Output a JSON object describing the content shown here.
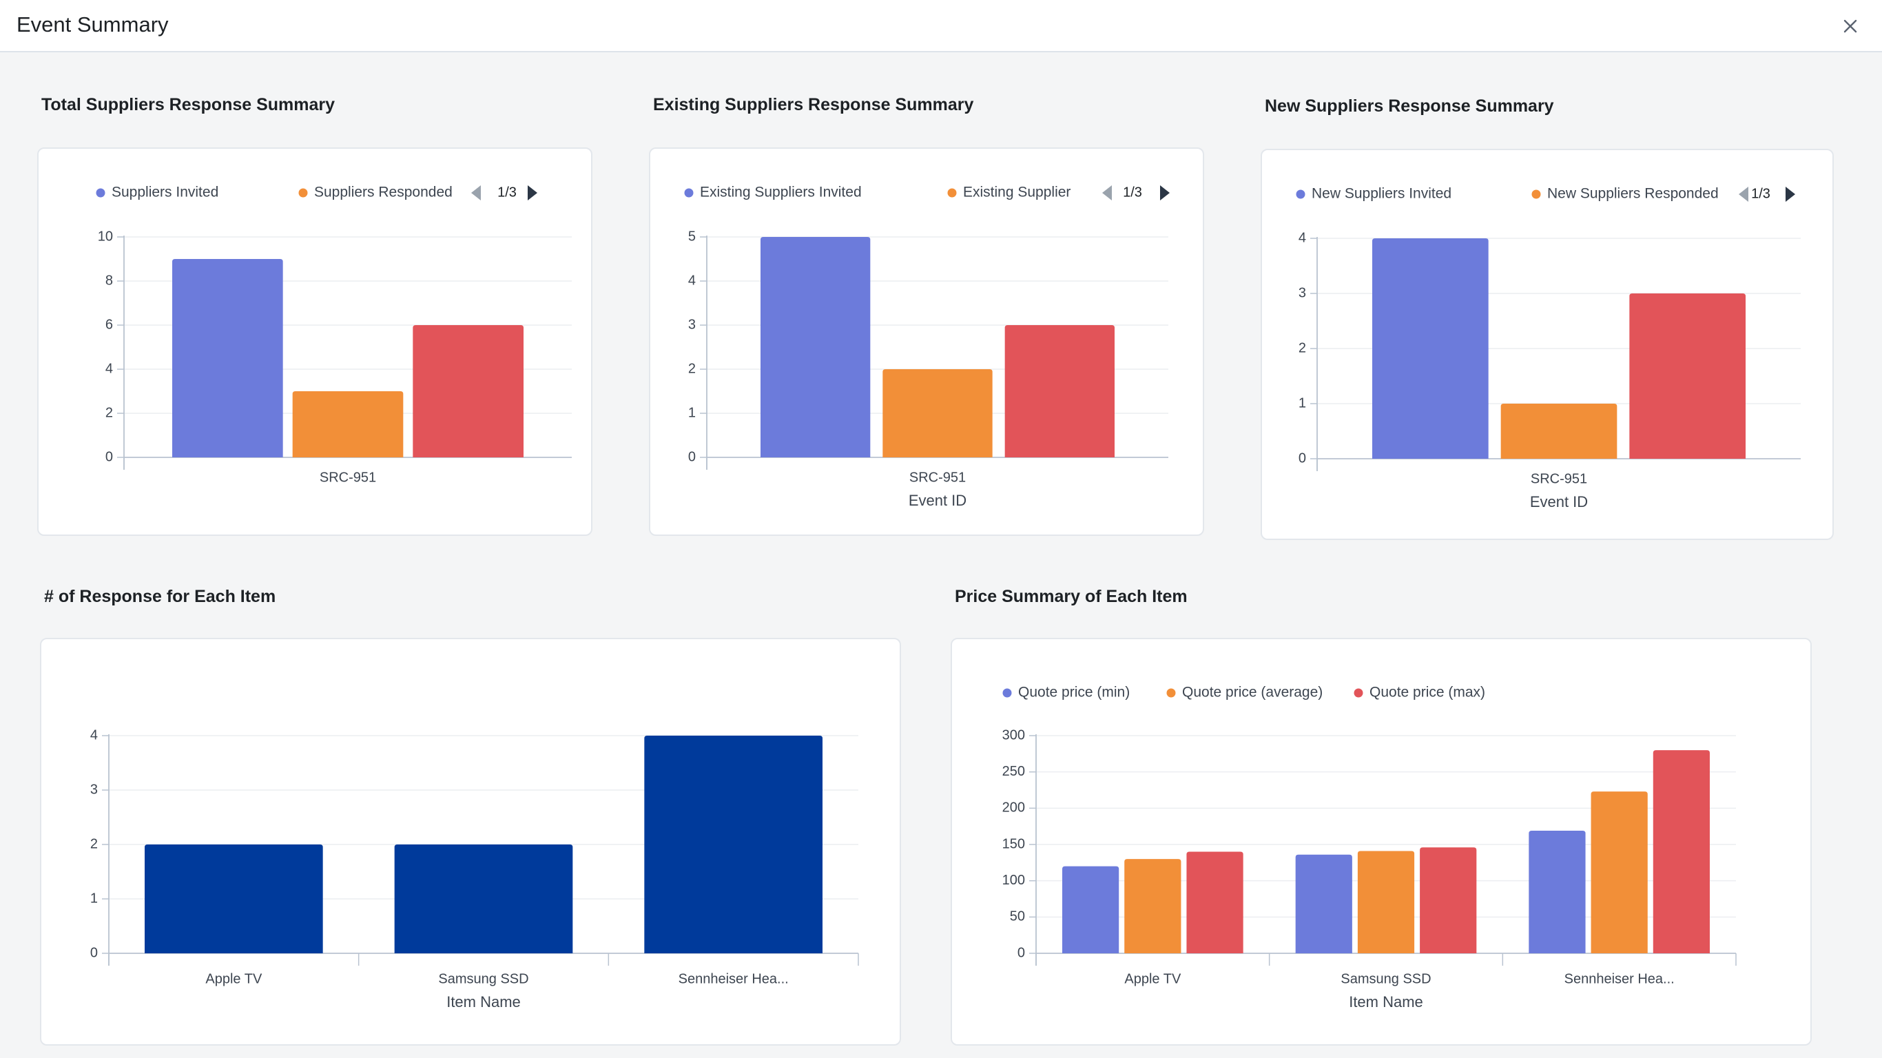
{
  "header": {
    "title": "Event Summary",
    "close_icon": "close-icon"
  },
  "colors": {
    "blue": "#6c7bdb",
    "orange": "#f28f38",
    "red": "#e25459",
    "navy": "#003a9b",
    "grid": "#eceef1",
    "axis": "#b9c3d0",
    "text": "#3d4550"
  },
  "sections": {
    "total_title": "Total Suppliers Response Summary",
    "existing_title": "Existing Suppliers Response Summary",
    "new_title": "New Suppliers Response Summary",
    "response_title": "# of Response for Each Item",
    "price_title": "Price Summary of Each Item"
  },
  "chart_data": [
    {
      "id": "total",
      "type": "bar",
      "legend": [
        "Suppliers Invited",
        "Suppliers Responded"
      ],
      "pager": "1/3",
      "categories": [
        "SRC-951"
      ],
      "series": [
        {
          "name": "Suppliers Invited",
          "color": "#6c7bdb",
          "values": [
            9
          ]
        },
        {
          "name": "Suppliers Responded",
          "color": "#f28f38",
          "values": [
            3
          ]
        },
        {
          "color": "#e25459",
          "values": [
            6
          ]
        }
      ],
      "ylim": [
        0,
        10
      ],
      "yticks": [
        0,
        2,
        4,
        6,
        8,
        10
      ],
      "xlabel": "",
      "grid": true,
      "legend_position": "top"
    },
    {
      "id": "existing",
      "type": "bar",
      "legend": [
        "Existing Suppliers Invited",
        "Existing Supplier"
      ],
      "pager": "1/3",
      "categories": [
        "SRC-951"
      ],
      "series": [
        {
          "name": "Existing Suppliers Invited",
          "color": "#6c7bdb",
          "values": [
            5
          ]
        },
        {
          "name": "Existing Supplier",
          "color": "#f28f38",
          "values": [
            2
          ]
        },
        {
          "color": "#e25459",
          "values": [
            3
          ]
        }
      ],
      "ylim": [
        0,
        5
      ],
      "yticks": [
        0,
        1,
        2,
        3,
        4,
        5
      ],
      "xlabel": "Event ID",
      "grid": true,
      "legend_position": "top"
    },
    {
      "id": "new",
      "type": "bar",
      "legend": [
        "New Suppliers Invited",
        "New Suppliers Responded"
      ],
      "pager": "1/3",
      "categories": [
        "SRC-951"
      ],
      "series": [
        {
          "name": "New Suppliers Invited",
          "color": "#6c7bdb",
          "values": [
            4
          ]
        },
        {
          "name": "New Suppliers Responded",
          "color": "#f28f38",
          "values": [
            1
          ]
        },
        {
          "color": "#e25459",
          "values": [
            3
          ]
        }
      ],
      "ylim": [
        0,
        4
      ],
      "yticks": [
        0,
        1,
        2,
        3,
        4
      ],
      "xlabel": "Event ID",
      "grid": true,
      "legend_position": "top"
    },
    {
      "id": "response",
      "type": "bar",
      "legend": [],
      "categories": [
        "Apple TV",
        "Samsung SSD",
        "Sennheiser Hea..."
      ],
      "series": [
        {
          "color": "#003a9b",
          "values": [
            2,
            2,
            4
          ]
        }
      ],
      "ylim": [
        0,
        4
      ],
      "yticks": [
        0,
        1,
        2,
        3,
        4
      ],
      "xlabel": "Item Name",
      "grid": true
    },
    {
      "id": "price",
      "type": "bar",
      "legend": [
        "Quote price (min)",
        "Quote price (average)",
        "Quote price (max)"
      ],
      "categories": [
        "Apple TV",
        "Samsung SSD",
        "Sennheiser Hea..."
      ],
      "series": [
        {
          "name": "Quote price (min)",
          "color": "#6c7bdb",
          "values": [
            120,
            136,
            169
          ]
        },
        {
          "name": "Quote price (average)",
          "color": "#f28f38",
          "values": [
            130,
            141,
            223
          ]
        },
        {
          "name": "Quote price (max)",
          "color": "#e25459",
          "values": [
            140,
            146,
            280
          ]
        }
      ],
      "ylim": [
        0,
        300
      ],
      "yticks": [
        0,
        50,
        100,
        150,
        200,
        250,
        300
      ],
      "xlabel": "Item Name",
      "grid": true,
      "legend_position": "top-left"
    }
  ]
}
